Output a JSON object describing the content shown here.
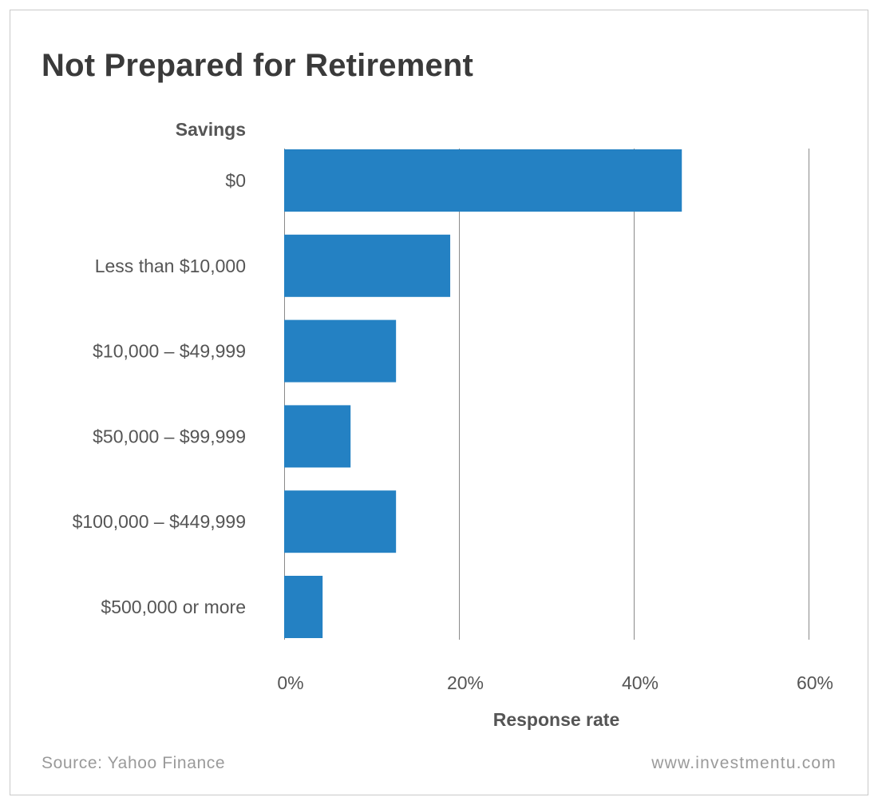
{
  "footer": {
    "source": "Source: Yahoo Finance",
    "website": "www.investmentu.com"
  },
  "colors": {
    "bar": "#2481c3",
    "gridline": "#8a8a8a",
    "text": "#555555",
    "title": "#3a3a3a"
  },
  "chart_data": {
    "type": "bar",
    "orientation": "horizontal",
    "title": "Not Prepared for Retirement",
    "ylabel": "Savings",
    "xlabel": "Response rate",
    "categories": [
      "$0",
      "Less than $10,000",
      "$10,000 – $49,999",
      "$50,000 – $99,999",
      "$100,000 – $449,999",
      "$500,000 or more"
    ],
    "values": [
      45.5,
      19,
      12.8,
      7.6,
      12.8,
      4.4
    ],
    "xlim": [
      0,
      60
    ],
    "xticks": [
      0,
      20,
      40,
      60
    ],
    "xtick_labels": [
      "0%",
      "20%",
      "40%",
      "60%"
    ],
    "grid": "vertical",
    "legend": "none"
  }
}
